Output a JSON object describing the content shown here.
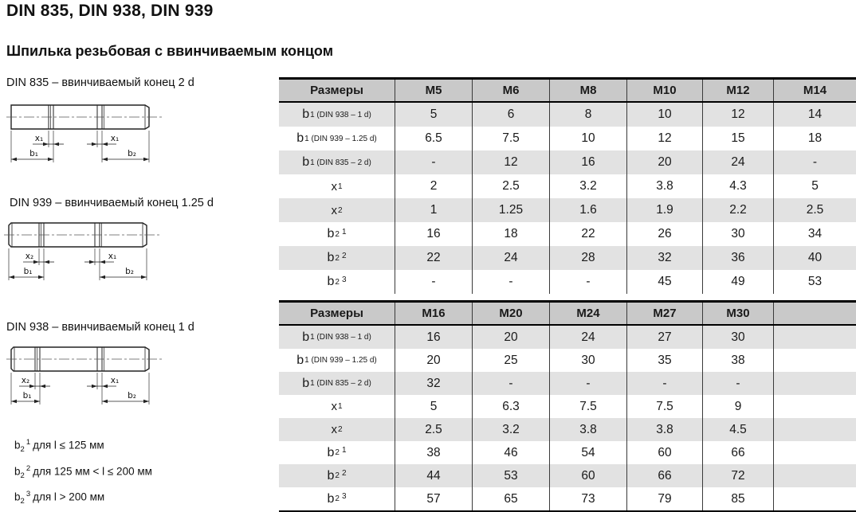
{
  "page": {
    "title": "DIN 835, DIN 938, DIN 939",
    "subtitle": "Шпилька резьбовая с ввинчиваемым концом"
  },
  "drawings": [
    {
      "label": "DIN 835 – ввинчиваемый конец 2 d",
      "left_x": "x₁",
      "right_x": "x₁",
      "left_b": "b₁",
      "right_b": "b₂"
    },
    {
      "label": "DIN 939 – ввинчиваемый конец 1.25 d",
      "left_x": "x₂",
      "right_x": "x₁",
      "left_b": "b₁",
      "right_b": "b₂"
    },
    {
      "label": "DIN 938 – ввинчиваемый конец 1 d",
      "left_x": "x₂",
      "right_x": "x₁",
      "left_b": "b₁",
      "right_b": "b₂"
    }
  ],
  "footnotes": [
    {
      "base": "b",
      "sub": "2",
      "sup": "1",
      "text": "для l ≤ 125 мм"
    },
    {
      "base": "b",
      "sub": "2",
      "sup": "2",
      "text": "для 125 мм < l ≤ 200 мм"
    },
    {
      "base": "b",
      "sub": "2",
      "sup": "3",
      "text": "для l > 200 мм"
    }
  ],
  "tables": [
    {
      "header": [
        "Размеры",
        "M5",
        "M6",
        "M8",
        "M10",
        "M12",
        "M14"
      ],
      "rows": [
        {
          "label": {
            "base": "b",
            "sub": "1 (DIN 938 – 1 d)"
          },
          "values": [
            "5",
            "6",
            "8",
            "10",
            "12",
            "14"
          ]
        },
        {
          "label": {
            "base": "b",
            "sub": "1 (DIN 939 – 1.25 d)"
          },
          "values": [
            "6.5",
            "7.5",
            "10",
            "12",
            "15",
            "18"
          ]
        },
        {
          "label": {
            "base": "b",
            "sub": "1 (DIN 835 – 2 d)"
          },
          "values": [
            "-",
            "12",
            "16",
            "20",
            "24",
            "-"
          ]
        },
        {
          "label": {
            "base": "x",
            "sub": "1"
          },
          "values": [
            "2",
            "2.5",
            "3.2",
            "3.8",
            "4.3",
            "5"
          ]
        },
        {
          "label": {
            "base": "x",
            "sub": "2"
          },
          "values": [
            "1",
            "1.25",
            "1.6",
            "1.9",
            "2.2",
            "2.5"
          ]
        },
        {
          "label": {
            "base": "b",
            "sub": "2",
            "sup": "1"
          },
          "values": [
            "16",
            "18",
            "22",
            "26",
            "30",
            "34"
          ]
        },
        {
          "label": {
            "base": "b",
            "sub": "2",
            "sup": "2"
          },
          "values": [
            "22",
            "24",
            "28",
            "32",
            "36",
            "40"
          ]
        },
        {
          "label": {
            "base": "b",
            "sub": "2",
            "sup": "3"
          },
          "values": [
            "-",
            "-",
            "-",
            "45",
            "49",
            "53"
          ]
        }
      ]
    },
    {
      "header": [
        "Размеры",
        "M16",
        "M20",
        "M24",
        "M27",
        "M30",
        ""
      ],
      "rows": [
        {
          "label": {
            "base": "b",
            "sub": "1 (DIN 938 – 1 d)"
          },
          "values": [
            "16",
            "20",
            "24",
            "27",
            "30",
            ""
          ]
        },
        {
          "label": {
            "base": "b",
            "sub": "1 (DIN 939 – 1.25 d)"
          },
          "values": [
            "20",
            "25",
            "30",
            "35",
            "38",
            ""
          ]
        },
        {
          "label": {
            "base": "b",
            "sub": "1 (DIN 835 – 2 d)"
          },
          "values": [
            "32",
            "-",
            "-",
            "-",
            "-",
            ""
          ]
        },
        {
          "label": {
            "base": "x",
            "sub": "1"
          },
          "values": [
            "5",
            "6.3",
            "7.5",
            "7.5",
            "9",
            ""
          ]
        },
        {
          "label": {
            "base": "x",
            "sub": "2"
          },
          "values": [
            "2.5",
            "3.2",
            "3.8",
            "3.8",
            "4.5",
            ""
          ]
        },
        {
          "label": {
            "base": "b",
            "sub": "2",
            "sup": "1"
          },
          "values": [
            "38",
            "46",
            "54",
            "60",
            "66",
            ""
          ]
        },
        {
          "label": {
            "base": "b",
            "sub": "2",
            "sup": "2"
          },
          "values": [
            "44",
            "53",
            "60",
            "66",
            "72",
            ""
          ]
        },
        {
          "label": {
            "base": "b",
            "sub": "2",
            "sup": "3"
          },
          "values": [
            "57",
            "65",
            "73",
            "79",
            "85",
            ""
          ]
        }
      ]
    }
  ],
  "colors": {
    "header_bg": "#c9c9c9",
    "stripe_bg": "#e2e2e2",
    "border": "#000000",
    "text": "#1a1a1a"
  }
}
